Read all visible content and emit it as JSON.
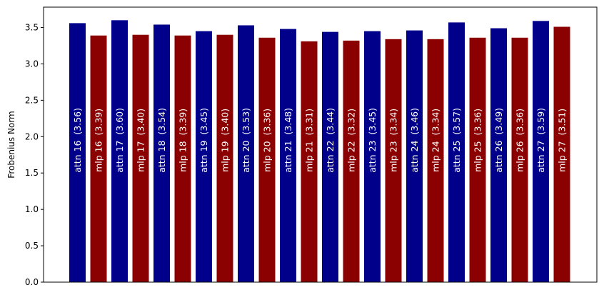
{
  "chart_data": {
    "type": "bar",
    "title": "",
    "xlabel": "",
    "ylabel": "Frobenius Norm",
    "ylim": [
      0,
      3.78
    ],
    "yticks": [
      0.0,
      0.5,
      1.0,
      1.5,
      2.0,
      2.5,
      3.0,
      3.5
    ],
    "ytick_labels": [
      "0.0",
      "0.5",
      "1.0",
      "1.5",
      "2.0",
      "2.5",
      "3.0",
      "3.5"
    ],
    "grid": false,
    "colors": {
      "attn": "#00008b",
      "mlp": "#8b0000"
    },
    "categories": [
      "attn 16",
      "mlp 16",
      "attn 17",
      "mlp 17",
      "attn 18",
      "mlp 18",
      "attn 19",
      "mlp 19",
      "attn 20",
      "mlp 20",
      "attn 21",
      "mlp 21",
      "attn 22",
      "mlp 22",
      "attn 23",
      "mlp 23",
      "attn 24",
      "mlp 24",
      "attn 25",
      "mlp 25",
      "attn 26",
      "mlp 26",
      "attn 27",
      "mlp 27"
    ],
    "values": [
      3.56,
      3.39,
      3.6,
      3.4,
      3.54,
      3.39,
      3.45,
      3.4,
      3.53,
      3.36,
      3.48,
      3.31,
      3.44,
      3.32,
      3.45,
      3.34,
      3.46,
      3.34,
      3.57,
      3.36,
      3.49,
      3.36,
      3.59,
      3.51
    ],
    "bar_labels": [
      "attn 16  (3.56)",
      "mlp 16  (3.39)",
      "attn 17  (3.60)",
      "mlp 17  (3.40)",
      "attn 18  (3.54)",
      "mlp 18  (3.39)",
      "attn 19  (3.45)",
      "mlp 19  (3.40)",
      "attn 20  (3.53)",
      "mlp 20  (3.36)",
      "attn 21  (3.48)",
      "mlp 21  (3.31)",
      "attn 22  (3.44)",
      "mlp 22  (3.32)",
      "attn 23  (3.45)",
      "mlp 23  (3.34)",
      "attn 24  (3.46)",
      "mlp 24  (3.34)",
      "attn 25  (3.57)",
      "mlp 25  (3.36)",
      "attn 26  (3.49)",
      "mlp 26  (3.36)",
      "attn 27  (3.59)",
      "mlp 27  (3.51)"
    ],
    "bar_kinds": [
      "attn",
      "mlp",
      "attn",
      "mlp",
      "attn",
      "mlp",
      "attn",
      "mlp",
      "attn",
      "mlp",
      "attn",
      "mlp",
      "attn",
      "mlp",
      "attn",
      "mlp",
      "attn",
      "mlp",
      "attn",
      "mlp",
      "attn",
      "mlp",
      "attn",
      "mlp"
    ]
  }
}
